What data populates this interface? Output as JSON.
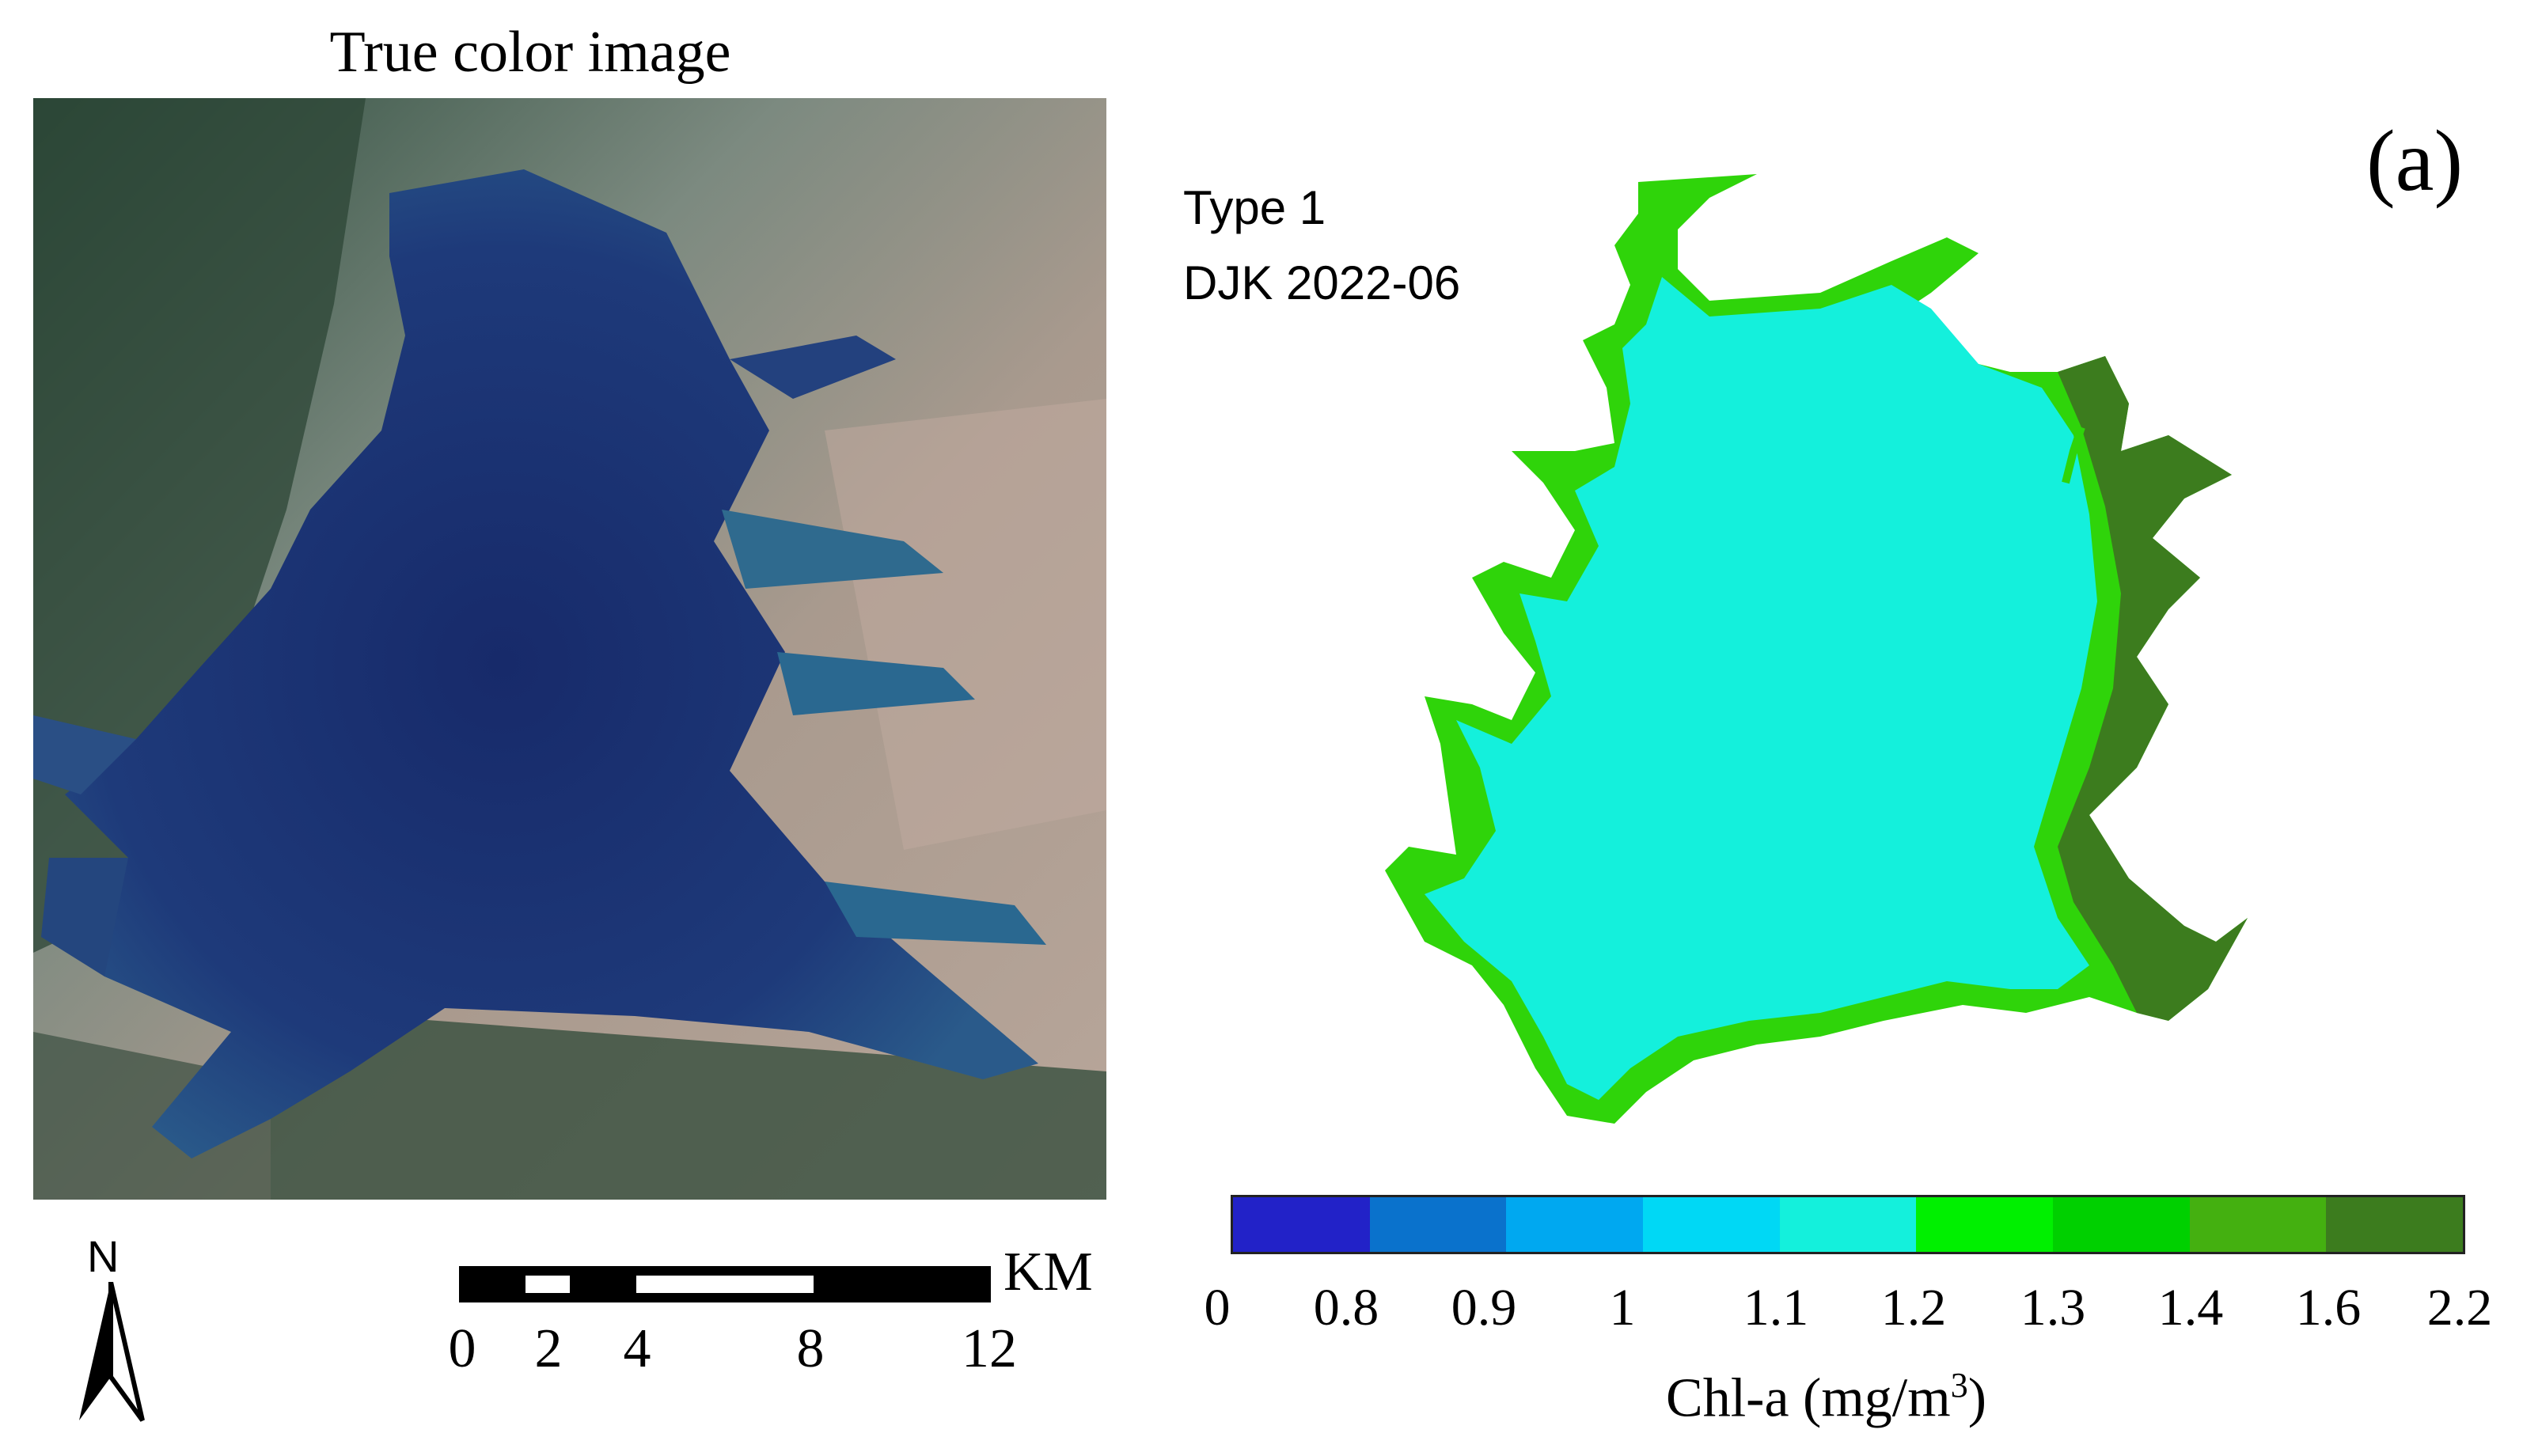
{
  "left_panel": {
    "title": "True color image",
    "scale_bar": {
      "ticks": [
        "0",
        "2",
        "4",
        "8",
        "12"
      ],
      "unit": "KM"
    },
    "north_label": "N"
  },
  "right_panel": {
    "panel_label": "(a)",
    "type_label": "Type 1",
    "date_label": "DJK 2022-06",
    "colorbar": {
      "colors": [
        "#2222c8",
        "#0a72cc",
        "#00a8f0",
        "#00d8f5",
        "#14f0dc",
        "#00f000",
        "#00d000",
        "#44b010",
        "#3c7c1e"
      ],
      "ticks": [
        "0",
        "0.8",
        "0.9",
        "1",
        "1.1",
        "1.2",
        "1.3",
        "1.4",
        "1.6",
        "2.2"
      ],
      "label_main": "Chl-a (mg/m",
      "label_sup": "3",
      "label_close": ")"
    }
  },
  "colors": {
    "water_dark": "#1a2f6e",
    "chl_bulk": "#14f0dc",
    "chl_edge": "#2fd40a",
    "chl_high": "#3c7c1e"
  }
}
